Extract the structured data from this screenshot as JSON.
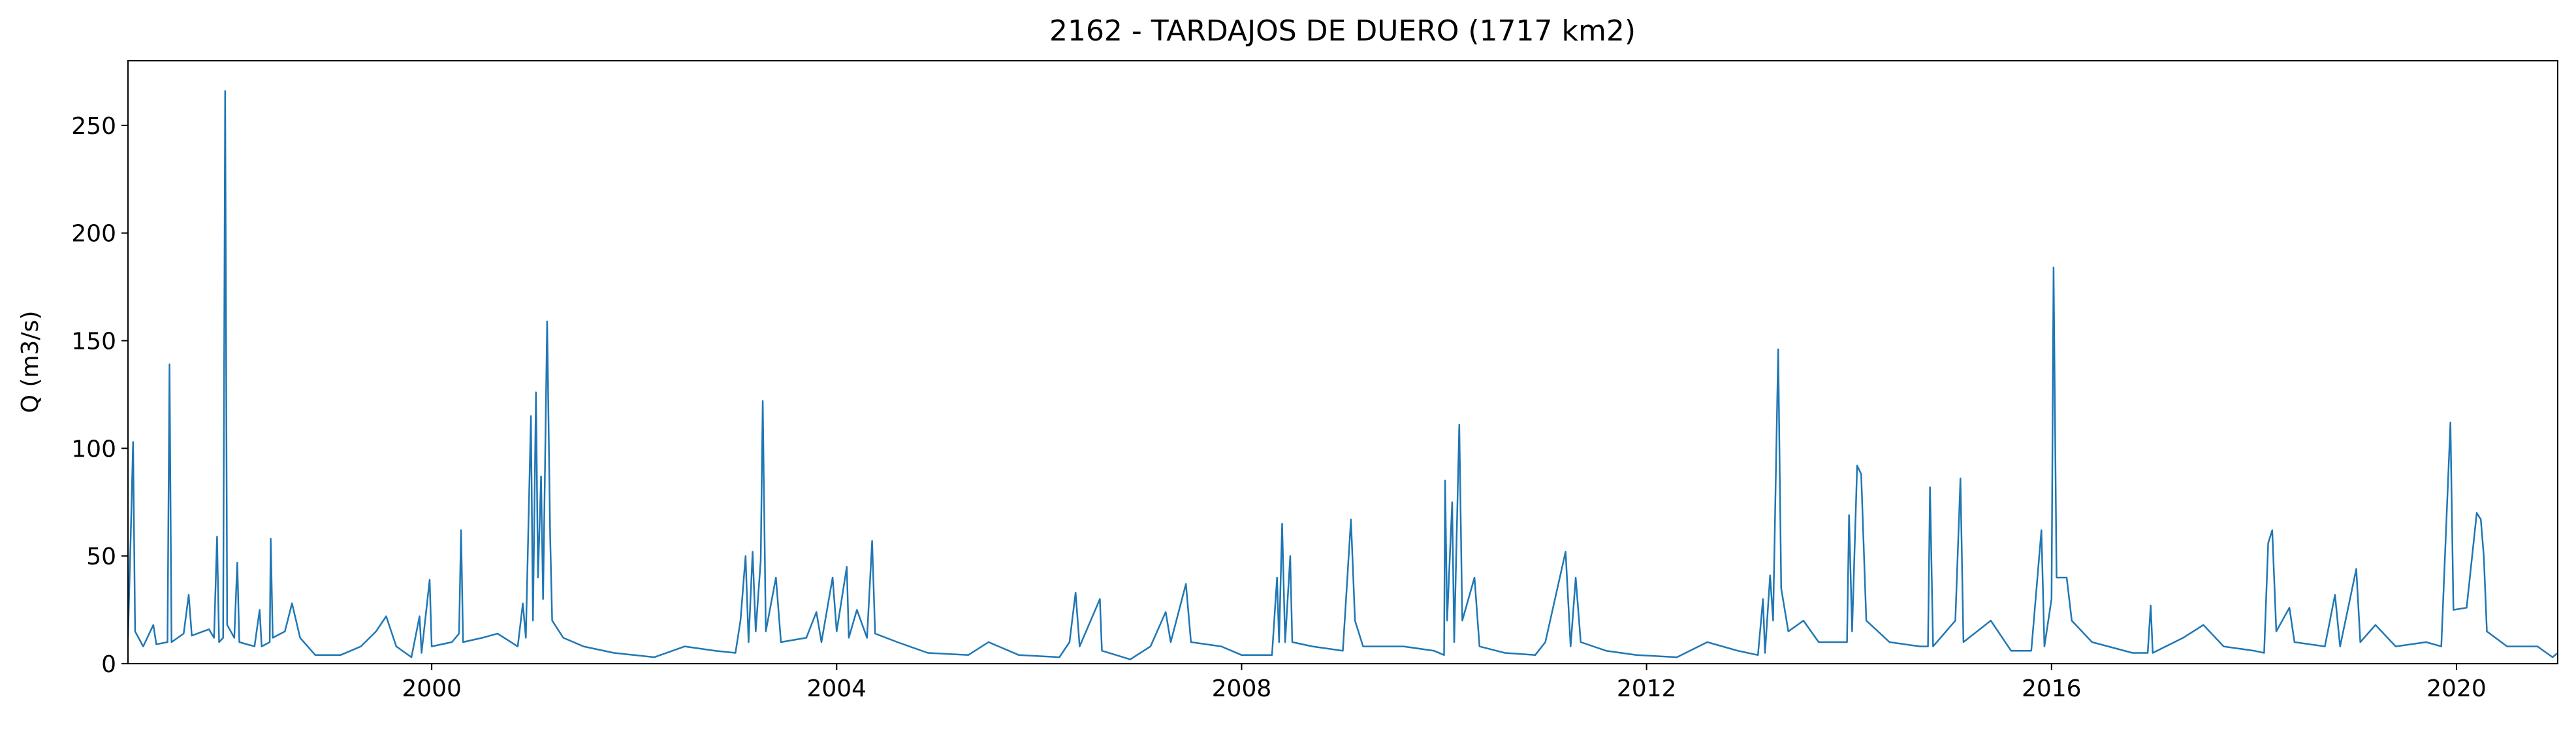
{
  "chart_data": {
    "type": "line",
    "title": "2162 - TARDAJOS DE DUERO (1717 km2)",
    "y_label": "Q (m3/s)",
    "color": "#1f77b4",
    "x": [
      1997.0,
      1997.03,
      1997.05,
      1997.07,
      1997.15,
      1997.25,
      1997.28,
      1997.39,
      1997.41,
      1997.43,
      1997.55,
      1997.6,
      1997.63,
      1997.8,
      1997.85,
      1997.88,
      1997.9,
      1997.94,
      1997.96,
      1997.98,
      1998.05,
      1998.08,
      1998.1,
      1998.25,
      1998.3,
      1998.32,
      1998.4,
      1998.41,
      1998.43,
      1998.55,
      1998.62,
      1998.7,
      1998.85,
      1999.1,
      1999.3,
      1999.45,
      1999.55,
      1999.65,
      1999.8,
      1999.88,
      1999.9,
      1999.98,
      2000.0,
      2000.2,
      2000.27,
      2000.29,
      2000.31,
      2000.5,
      2000.65,
      2000.85,
      2000.9,
      2000.93,
      2000.98,
      2001.0,
      2001.03,
      2001.05,
      2001.08,
      2001.1,
      2001.14,
      2001.17,
      2001.19,
      2001.3,
      2001.5,
      2001.8,
      2002.2,
      2002.5,
      2002.8,
      2003.0,
      2003.05,
      2003.1,
      2003.13,
      2003.17,
      2003.2,
      2003.25,
      2003.27,
      2003.3,
      2003.4,
      2003.45,
      2003.7,
      2003.8,
      2003.85,
      2003.96,
      2004.0,
      2004.1,
      2004.12,
      2004.2,
      2004.3,
      2004.35,
      2004.38,
      2004.6,
      2004.9,
      2005.3,
      2005.5,
      2005.8,
      2006.2,
      2006.3,
      2006.36,
      2006.4,
      2006.6,
      2006.62,
      2006.9,
      2007.1,
      2007.25,
      2007.3,
      2007.45,
      2007.5,
      2007.8,
      2008.0,
      2008.3,
      2008.35,
      2008.37,
      2008.4,
      2008.43,
      2008.48,
      2008.5,
      2008.7,
      2009.0,
      2009.08,
      2009.12,
      2009.2,
      2009.6,
      2009.9,
      2010.0,
      2010.01,
      2010.03,
      2010.08,
      2010.1,
      2010.15,
      2010.18,
      2010.3,
      2010.35,
      2010.6,
      2010.9,
      2011.0,
      2011.2,
      2011.25,
      2011.3,
      2011.35,
      2011.6,
      2011.9,
      2012.3,
      2012.6,
      2012.9,
      2013.1,
      2013.15,
      2013.17,
      2013.22,
      2013.25,
      2013.3,
      2013.33,
      2013.4,
      2013.55,
      2013.7,
      2013.98,
      2014.0,
      2014.03,
      2014.08,
      2014.12,
      2014.17,
      2014.4,
      2014.7,
      2014.78,
      2014.8,
      2014.83,
      2015.05,
      2015.1,
      2015.13,
      2015.4,
      2015.6,
      2015.8,
      2015.9,
      2015.93,
      2016.0,
      2016.02,
      2016.05,
      2016.15,
      2016.2,
      2016.4,
      2016.8,
      2016.95,
      2016.98,
      2017.0,
      2017.3,
      2017.5,
      2017.7,
      2018.0,
      2018.1,
      2018.14,
      2018.18,
      2018.22,
      2018.35,
      2018.4,
      2018.7,
      2018.8,
      2018.85,
      2019.01,
      2019.05,
      2019.2,
      2019.4,
      2019.7,
      2019.85,
      2019.94,
      2019.97,
      2020.1,
      2020.2,
      2020.24,
      2020.27,
      2020.3,
      2020.5,
      2020.8,
      2020.95,
      2021.0
    ],
    "values": [
      12,
      65,
      103,
      15,
      8,
      18,
      9,
      10,
      139,
      10,
      14,
      32,
      13,
      16,
      12,
      59,
      10,
      12,
      266,
      18,
      12,
      47,
      10,
      8,
      25,
      8,
      10,
      58,
      12,
      15,
      28,
      12,
      4,
      4,
      8,
      15,
      22,
      8,
      3,
      22,
      5,
      39,
      8,
      10,
      14,
      62,
      10,
      12,
      14,
      8,
      28,
      12,
      115,
      20,
      126,
      40,
      87,
      30,
      159,
      60,
      20,
      12,
      8,
      5,
      3,
      8,
      6,
      5,
      20,
      50,
      10,
      52,
      15,
      48,
      122,
      15,
      40,
      10,
      12,
      24,
      10,
      40,
      15,
      45,
      12,
      25,
      12,
      57,
      14,
      10,
      5,
      4,
      10,
      4,
      3,
      10,
      33,
      8,
      30,
      6,
      2,
      8,
      24,
      10,
      37,
      10,
      8,
      4,
      4,
      40,
      10,
      65,
      10,
      50,
      10,
      8,
      6,
      67,
      20,
      8,
      8,
      6,
      4,
      85,
      20,
      75,
      10,
      111,
      20,
      40,
      8,
      5,
      4,
      10,
      52,
      8,
      40,
      10,
      6,
      4,
      3,
      10,
      6,
      4,
      30,
      5,
      41,
      20,
      146,
      35,
      15,
      20,
      10,
      10,
      69,
      15,
      92,
      88,
      20,
      10,
      8,
      8,
      82,
      8,
      20,
      86,
      10,
      20,
      6,
      6,
      62,
      8,
      30,
      184,
      40,
      40,
      20,
      10,
      5,
      5,
      27,
      5,
      12,
      18,
      8,
      6,
      5,
      56,
      62,
      15,
      26,
      10,
      8,
      32,
      8,
      44,
      10,
      18,
      8,
      10,
      8,
      112,
      25,
      26,
      70,
      67,
      50,
      15,
      8,
      8,
      3,
      5
    ],
    "xlim": [
      1997,
      2021
    ],
    "ylim": [
      0,
      280
    ],
    "xticks": [
      2000,
      2004,
      2008,
      2012,
      2016,
      2020
    ],
    "yticks": [
      0,
      50,
      100,
      150,
      200,
      250
    ]
  }
}
